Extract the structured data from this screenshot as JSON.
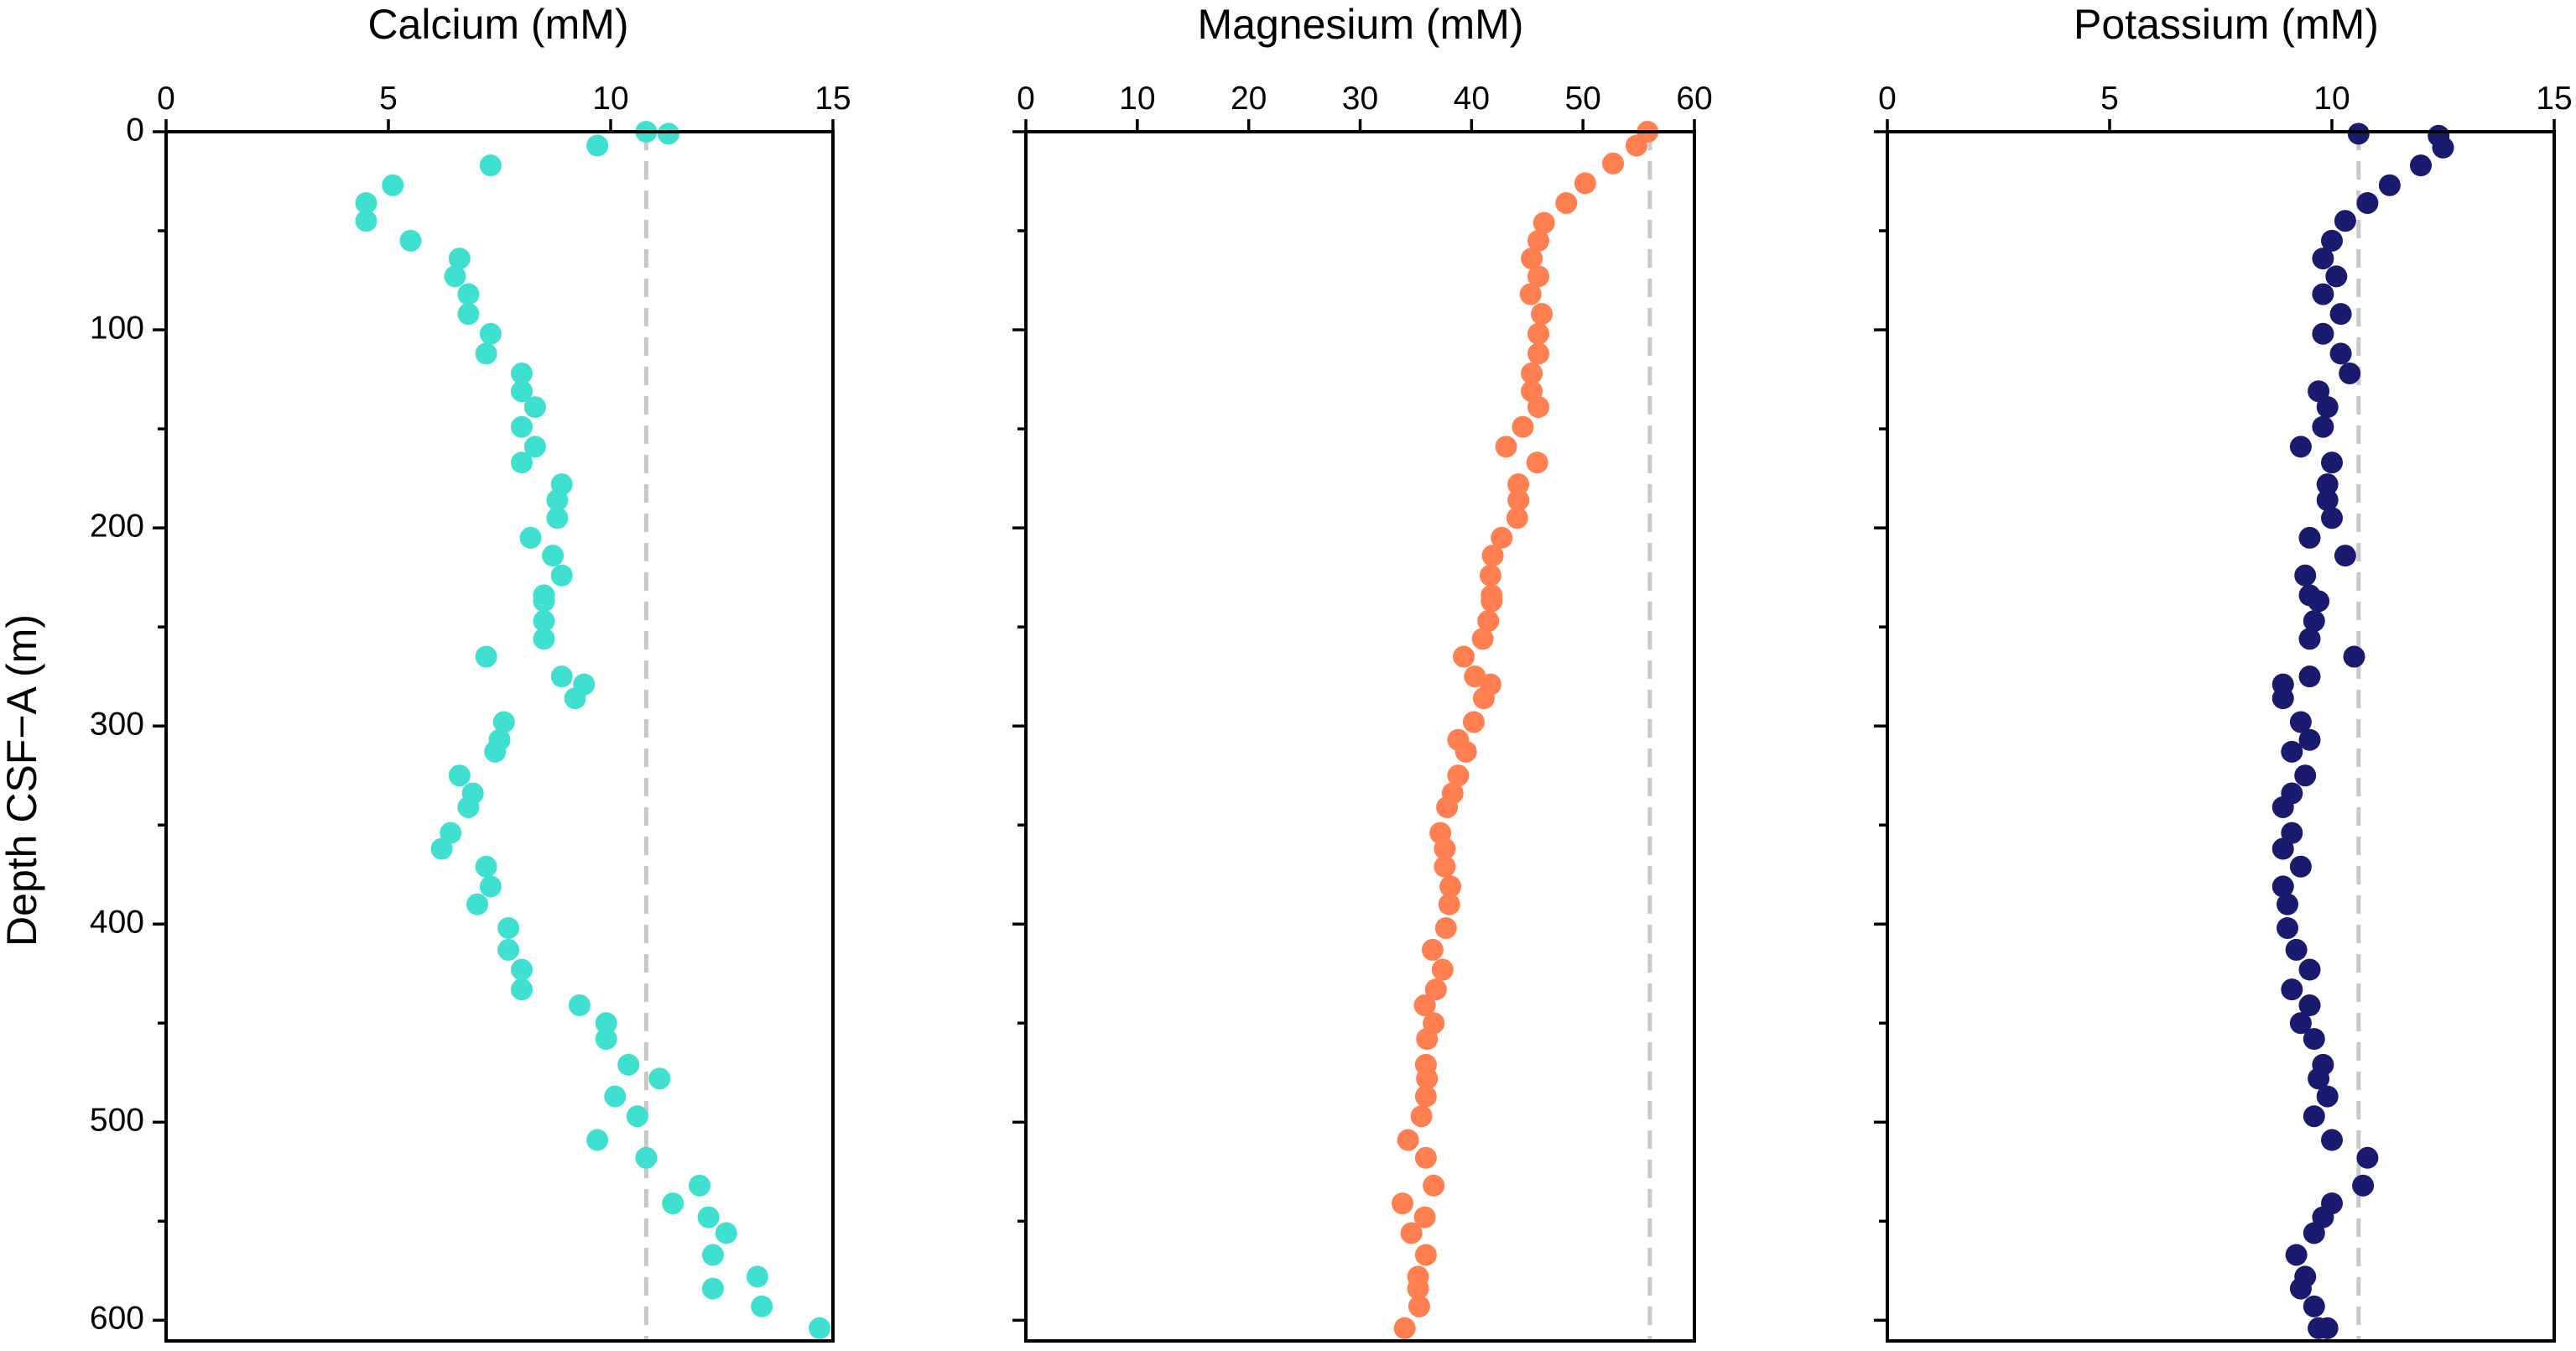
{
  "y_axis": {
    "label": "Depth CSF−A (m)",
    "ticks": [
      0,
      100,
      200,
      300,
      400,
      500,
      600
    ],
    "minor_ticks": [
      50,
      150,
      250,
      350,
      450,
      550
    ],
    "range": [
      0,
      610
    ],
    "inverted": true
  },
  "chart_data": [
    {
      "type": "scatter",
      "title": "Calcium (mM)",
      "x_ticks": [
        0,
        5,
        10,
        15
      ],
      "xlim": [
        0,
        15
      ],
      "color": "#40e0d0",
      "reference_x": 10.8,
      "points": [
        [
          10.8,
          0
        ],
        [
          11.3,
          1
        ],
        [
          9.7,
          7
        ],
        [
          7.3,
          17
        ],
        [
          5.1,
          27
        ],
        [
          4.5,
          36
        ],
        [
          4.5,
          45
        ],
        [
          5.5,
          55
        ],
        [
          6.6,
          64
        ],
        [
          6.5,
          73
        ],
        [
          6.8,
          82
        ],
        [
          6.8,
          92
        ],
        [
          7.3,
          102
        ],
        [
          7.2,
          112
        ],
        [
          8.0,
          122
        ],
        [
          8.0,
          131
        ],
        [
          8.3,
          139
        ],
        [
          8.0,
          149
        ],
        [
          8.3,
          159
        ],
        [
          8.0,
          167
        ],
        [
          8.9,
          178
        ],
        [
          8.8,
          186
        ],
        [
          8.8,
          195
        ],
        [
          8.2,
          205
        ],
        [
          8.7,
          214
        ],
        [
          8.9,
          224
        ],
        [
          8.5,
          234
        ],
        [
          8.5,
          237
        ],
        [
          8.5,
          247
        ],
        [
          8.5,
          256
        ],
        [
          7.2,
          265
        ],
        [
          8.9,
          275
        ],
        [
          9.4,
          279
        ],
        [
          9.2,
          286
        ],
        [
          7.6,
          298
        ],
        [
          7.5,
          307
        ],
        [
          7.4,
          313
        ],
        [
          6.6,
          325
        ],
        [
          6.9,
          334
        ],
        [
          6.8,
          341
        ],
        [
          6.4,
          354
        ],
        [
          6.2,
          362
        ],
        [
          7.2,
          371
        ],
        [
          7.3,
          381
        ],
        [
          7.0,
          390
        ],
        [
          7.7,
          402
        ],
        [
          7.7,
          413
        ],
        [
          8.0,
          423
        ],
        [
          8.0,
          433
        ],
        [
          9.3,
          441
        ],
        [
          9.9,
          450
        ],
        [
          9.9,
          458
        ],
        [
          10.4,
          471
        ],
        [
          11.1,
          478
        ],
        [
          10.1,
          487
        ],
        [
          10.6,
          497
        ],
        [
          9.7,
          509
        ],
        [
          10.8,
          518
        ],
        [
          12.0,
          532
        ],
        [
          11.4,
          541
        ],
        [
          12.2,
          548
        ],
        [
          12.6,
          556
        ],
        [
          12.3,
          567
        ],
        [
          13.3,
          578
        ],
        [
          12.3,
          584
        ],
        [
          13.4,
          593
        ],
        [
          14.7,
          604
        ]
      ]
    },
    {
      "type": "scatter",
      "title": "Magnesium (mM)",
      "x_ticks": [
        0,
        10,
        20,
        30,
        40,
        50,
        60
      ],
      "xlim": [
        0,
        60
      ],
      "color": "#ff7f50",
      "reference_x": 56,
      "points": [
        [
          55.8,
          0
        ],
        [
          54.8,
          7
        ],
        [
          52.7,
          16
        ],
        [
          50.2,
          26
        ],
        [
          48.5,
          36
        ],
        [
          46.5,
          46
        ],
        [
          46.0,
          55
        ],
        [
          45.4,
          64
        ],
        [
          46.0,
          73
        ],
        [
          45.3,
          82
        ],
        [
          46.3,
          92
        ],
        [
          46.0,
          102
        ],
        [
          46.0,
          112
        ],
        [
          45.4,
          122
        ],
        [
          45.4,
          131
        ],
        [
          46.0,
          139
        ],
        [
          44.6,
          149
        ],
        [
          43.1,
          159
        ],
        [
          45.9,
          167
        ],
        [
          44.2,
          178
        ],
        [
          44.2,
          186
        ],
        [
          44.1,
          195
        ],
        [
          42.7,
          205
        ],
        [
          41.9,
          214
        ],
        [
          41.7,
          224
        ],
        [
          41.8,
          234
        ],
        [
          41.8,
          237
        ],
        [
          41.5,
          247
        ],
        [
          41.0,
          256
        ],
        [
          39.3,
          265
        ],
        [
          40.3,
          275
        ],
        [
          41.7,
          279
        ],
        [
          41.1,
          286
        ],
        [
          40.2,
          298
        ],
        [
          38.8,
          307
        ],
        [
          39.5,
          313
        ],
        [
          38.8,
          325
        ],
        [
          38.3,
          334
        ],
        [
          37.8,
          341
        ],
        [
          37.2,
          354
        ],
        [
          37.6,
          362
        ],
        [
          37.6,
          371
        ],
        [
          38.1,
          381
        ],
        [
          38.0,
          390
        ],
        [
          37.7,
          402
        ],
        [
          36.5,
          413
        ],
        [
          37.4,
          423
        ],
        [
          36.8,
          433
        ],
        [
          35.8,
          441
        ],
        [
          36.6,
          450
        ],
        [
          36.0,
          458
        ],
        [
          35.9,
          471
        ],
        [
          36.0,
          478
        ],
        [
          35.9,
          487
        ],
        [
          35.5,
          497
        ],
        [
          34.3,
          509
        ],
        [
          35.9,
          518
        ],
        [
          36.6,
          532
        ],
        [
          33.8,
          541
        ],
        [
          35.8,
          548
        ],
        [
          34.6,
          556
        ],
        [
          35.9,
          567
        ],
        [
          35.2,
          578
        ],
        [
          35.2,
          584
        ],
        [
          35.3,
          593
        ],
        [
          34.0,
          604
        ]
      ]
    },
    {
      "type": "scatter",
      "title": "Potassium (mM)",
      "x_ticks": [
        0,
        5,
        10,
        15
      ],
      "xlim": [
        0,
        15
      ],
      "color": "#1a1a6e",
      "reference_x": 10.6,
      "points": [
        [
          10.6,
          1
        ],
        [
          12.4,
          2
        ],
        [
          12.5,
          8
        ],
        [
          12.0,
          17
        ],
        [
          11.3,
          27
        ],
        [
          10.8,
          36
        ],
        [
          10.3,
          45
        ],
        [
          10.0,
          55
        ],
        [
          9.8,
          64
        ],
        [
          10.1,
          73
        ],
        [
          9.8,
          82
        ],
        [
          10.2,
          92
        ],
        [
          9.8,
          102
        ],
        [
          10.2,
          112
        ],
        [
          10.4,
          122
        ],
        [
          9.7,
          131
        ],
        [
          9.9,
          139
        ],
        [
          9.8,
          149
        ],
        [
          9.3,
          159
        ],
        [
          10.0,
          167
        ],
        [
          9.9,
          178
        ],
        [
          9.9,
          186
        ],
        [
          10.0,
          195
        ],
        [
          9.5,
          205
        ],
        [
          10.3,
          214
        ],
        [
          9.4,
          224
        ],
        [
          9.5,
          234
        ],
        [
          9.7,
          237
        ],
        [
          9.6,
          247
        ],
        [
          9.5,
          256
        ],
        [
          10.5,
          265
        ],
        [
          9.5,
          275
        ],
        [
          8.9,
          279
        ],
        [
          8.9,
          286
        ],
        [
          9.3,
          298
        ],
        [
          9.5,
          307
        ],
        [
          9.1,
          313
        ],
        [
          9.4,
          325
        ],
        [
          9.1,
          334
        ],
        [
          8.9,
          341
        ],
        [
          9.1,
          354
        ],
        [
          8.9,
          362
        ],
        [
          9.3,
          371
        ],
        [
          8.9,
          381
        ],
        [
          9.0,
          390
        ],
        [
          9.0,
          402
        ],
        [
          9.2,
          413
        ],
        [
          9.5,
          423
        ],
        [
          9.1,
          433
        ],
        [
          9.5,
          441
        ],
        [
          9.3,
          450
        ],
        [
          9.6,
          458
        ],
        [
          9.8,
          471
        ],
        [
          9.7,
          478
        ],
        [
          9.9,
          487
        ],
        [
          9.6,
          497
        ],
        [
          10.0,
          509
        ],
        [
          10.8,
          518
        ],
        [
          10.7,
          532
        ],
        [
          10.0,
          541
        ],
        [
          9.8,
          548
        ],
        [
          9.6,
          556
        ],
        [
          9.2,
          567
        ],
        [
          9.4,
          578
        ],
        [
          9.3,
          584
        ],
        [
          9.6,
          593
        ],
        [
          9.7,
          604
        ],
        [
          9.9,
          604
        ]
      ]
    }
  ]
}
